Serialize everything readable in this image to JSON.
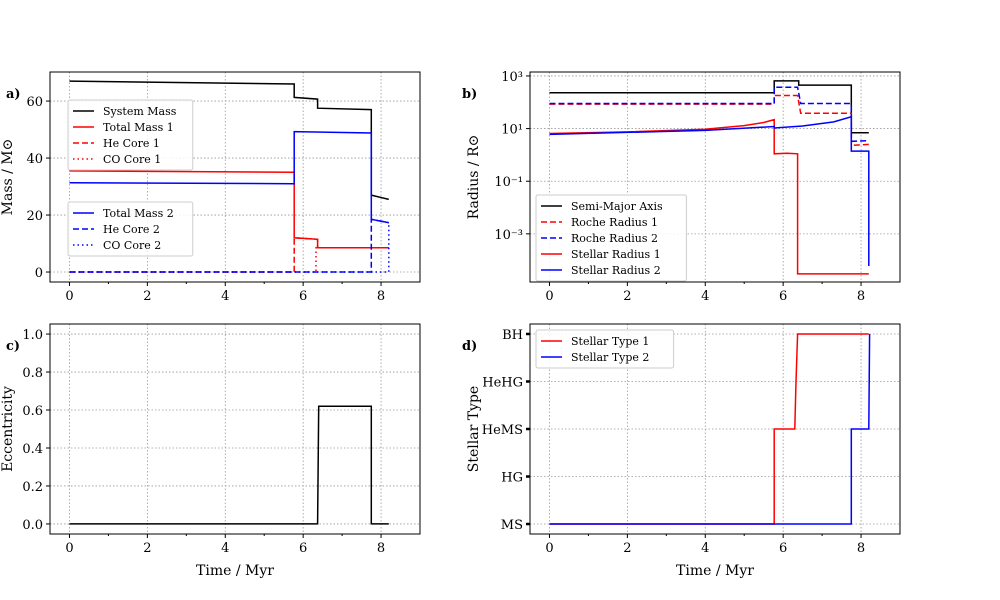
{
  "chart_data": [
    {
      "panel_label": "a)",
      "type": "line",
      "xlabel": "",
      "ylabel": "Mass / M⊙",
      "xlim": [
        -0.5,
        9
      ],
      "ylim": [
        -3.5,
        70.2
      ],
      "yscale": "linear",
      "grid": true,
      "xticks": [
        0,
        2,
        4,
        6,
        8
      ],
      "xtick_labels": [
        "0",
        "2",
        "4",
        "6",
        "8"
      ],
      "yticks": [
        0,
        20,
        40,
        60
      ],
      "ytick_labels": [
        "0",
        "20",
        "40",
        "60"
      ],
      "legends": [
        {
          "placement": "upper-left",
          "entries": [
            0,
            1,
            2,
            3
          ]
        },
        {
          "placement": "center-left",
          "entries": [
            4,
            5,
            6
          ]
        }
      ],
      "series": [
        {
          "name": "System Mass",
          "color": "#000000",
          "style": "solid",
          "x": [
            0,
            5.77,
            5.77,
            6.37,
            6.37,
            7.75,
            7.75,
            8.2
          ],
          "y": [
            67,
            66,
            61.3,
            60.7,
            57.5,
            57,
            27,
            25.5
          ]
        },
        {
          "name": "Total Mass 1",
          "color": "#ff0000",
          "style": "solid",
          "x": [
            0,
            5.77,
            5.77,
            6.37,
            6.37,
            8.2
          ],
          "y": [
            35.5,
            35,
            12,
            11.5,
            8.5,
            8.5
          ]
        },
        {
          "name": "He Core 1",
          "color": "#ff0000",
          "style": "dashed",
          "x": [
            0,
            5.77,
            5.77,
            6.37,
            6.37,
            8.2
          ],
          "y": [
            0,
            0,
            12,
            11.5,
            8.5,
            8.5
          ]
        },
        {
          "name": "CO Core 1",
          "color": "#ff0000",
          "style": "dotted",
          "x": [
            0,
            6.33,
            6.33,
            8.2
          ],
          "y": [
            0,
            0,
            8.5,
            8.5
          ]
        },
        {
          "name": "Total Mass 2",
          "color": "#0000ff",
          "style": "solid",
          "x": [
            0,
            5.77,
            5.77,
            7.75,
            7.75,
            8.2
          ],
          "y": [
            31.3,
            31,
            49.3,
            48.8,
            18.5,
            17.3
          ]
        },
        {
          "name": "He Core 2",
          "color": "#0000ff",
          "style": "dashed",
          "x": [
            0,
            7.75,
            7.75,
            8.2
          ],
          "y": [
            0,
            0,
            18.5,
            17.3
          ]
        },
        {
          "name": "CO Core 2",
          "color": "#0000ff",
          "style": "dotted",
          "x": [
            0,
            8.2,
            8.2
          ],
          "y": [
            0,
            0,
            17.3
          ]
        }
      ]
    },
    {
      "panel_label": "b)",
      "type": "line",
      "xlabel": "",
      "ylabel": "Radius / R⊙",
      "xlim": [
        -0.5,
        9
      ],
      "ylim": [
        1.48e-05,
        1413
      ],
      "yscale": "log",
      "grid": true,
      "xticks": [
        0,
        2,
        4,
        6,
        8
      ],
      "xtick_labels": [
        "0",
        "2",
        "4",
        "6",
        "8"
      ],
      "yticks": [
        1000,
        10,
        0.1,
        0.001
      ],
      "ytick_labels": [
        "10³",
        "10¹",
        "10⁻¹",
        "10⁻³"
      ],
      "legends": [
        {
          "placement": "lower-left",
          "entries": [
            0,
            1,
            2,
            3,
            4
          ]
        }
      ],
      "series": [
        {
          "name": "Semi-Major Axis",
          "color": "#000000",
          "style": "solid",
          "x": [
            0,
            5.77,
            5.77,
            6.4,
            6.4,
            7.75,
            7.75,
            8.2
          ],
          "y": [
            230,
            230,
            650,
            650,
            450,
            450,
            7,
            7
          ]
        },
        {
          "name": "Roche Radius 1",
          "color": "#ff0000",
          "style": "dashed",
          "x": [
            0,
            5.77,
            5.77,
            6.37,
            6.45,
            7.75,
            7.75,
            8.2
          ],
          "y": [
            85,
            85,
            180,
            180,
            38,
            38,
            2.3,
            2.5
          ]
        },
        {
          "name": "Roche Radius 2",
          "color": "#0000ff",
          "style": "dashed",
          "x": [
            0,
            5.77,
            5.77,
            6.37,
            6.45,
            7.75,
            7.75,
            8.2
          ],
          "y": [
            90,
            90,
            370,
            370,
            90,
            90,
            3.3,
            3.5
          ]
        },
        {
          "name": "Stellar Radius 1",
          "color": "#ff0000",
          "style": "solid",
          "x": [
            0,
            2,
            4,
            5,
            5.5,
            5.77,
            5.77,
            6.1,
            6.37,
            6.37,
            8.2
          ],
          "y": [
            6.5,
            7.5,
            9.5,
            13,
            17,
            22,
            1.1,
            1.15,
            1.1,
            3e-05,
            3e-05
          ]
        },
        {
          "name": "Stellar Radius 2",
          "color": "#0000ff",
          "style": "solid",
          "x": [
            0,
            4,
            5.77,
            5.77,
            6.5,
            7.3,
            7.75,
            7.75,
            8.2,
            8.2
          ],
          "y": [
            6,
            8.5,
            12,
            10.5,
            12.5,
            18,
            28,
            1.4,
            1.4,
            6e-05
          ]
        }
      ]
    },
    {
      "panel_label": "c)",
      "type": "line",
      "xlabel": "Time / Myr",
      "ylabel": "Eccentricity",
      "xlim": [
        -0.5,
        9
      ],
      "ylim": [
        -0.053,
        1.053
      ],
      "yscale": "linear",
      "grid": true,
      "xticks": [
        0,
        2,
        4,
        6,
        8
      ],
      "xtick_labels": [
        "0",
        "2",
        "4",
        "6",
        "8"
      ],
      "yticks": [
        0,
        0.2,
        0.4,
        0.6,
        0.8,
        1.0
      ],
      "ytick_labels": [
        "0.0",
        "0.2",
        "0.4",
        "0.6",
        "0.8",
        "1.0"
      ],
      "legends": [],
      "series": [
        {
          "name": "Eccentricity",
          "color": "#000000",
          "style": "solid",
          "x": [
            0,
            6.37,
            6.4,
            7.75,
            7.75,
            8.2
          ],
          "y": [
            0,
            0,
            0.62,
            0.62,
            0,
            0
          ]
        }
      ]
    },
    {
      "panel_label": "d)",
      "type": "line",
      "xlabel": "Time / Myr",
      "ylabel": "Stellar Type",
      "xlim": [
        -0.5,
        9
      ],
      "ylim": [
        -0.21,
        4.21
      ],
      "yscale": "linear",
      "grid": true,
      "xticks": [
        0,
        2,
        4,
        6,
        8
      ],
      "xtick_labels": [
        "0",
        "2",
        "4",
        "6",
        "8"
      ],
      "yticks": [
        0,
        1,
        2,
        3,
        4
      ],
      "ytick_labels": [
        "MS",
        "HG",
        "HeMS",
        "HeHG",
        "BH"
      ],
      "legends": [
        {
          "placement": "upper-left",
          "entries": [
            0,
            1
          ]
        }
      ],
      "series": [
        {
          "name": "Stellar Type 1",
          "color": "#ff0000",
          "style": "solid",
          "x": [
            0,
            5.77,
            5.77,
            6.3,
            6.33,
            6.37,
            8.2
          ],
          "y": [
            0,
            0,
            2,
            2,
            3,
            4,
            4
          ]
        },
        {
          "name": "Stellar Type 2",
          "color": "#0000ff",
          "style": "solid",
          "x": [
            0,
            7.75,
            7.75,
            8.2,
            8.22
          ],
          "y": [
            0,
            0,
            2,
            2,
            4
          ]
        }
      ]
    }
  ]
}
